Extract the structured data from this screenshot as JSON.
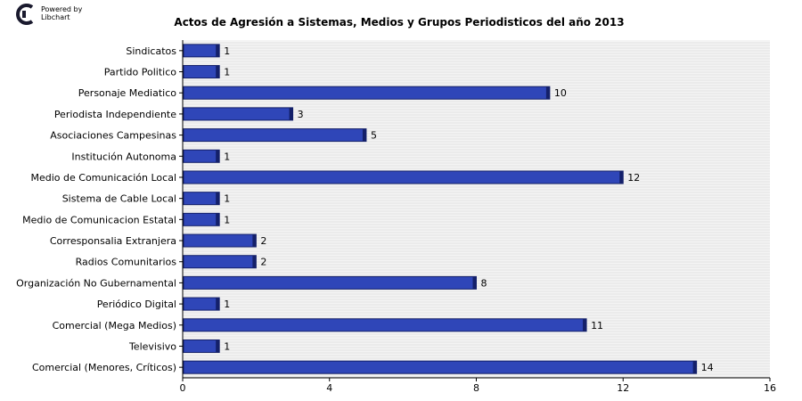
{
  "branding": {
    "line1": "Powered by",
    "line2": "Libchart"
  },
  "chart_data": {
    "type": "bar",
    "orientation": "horizontal",
    "title": "Actos de Agresión a Sistemas, Medios y Grupos Periodisticos del año 2013",
    "xlabel": "",
    "ylabel": "",
    "xlim": [
      0,
      16
    ],
    "xticks": [
      0,
      4,
      8,
      12,
      16
    ],
    "grid": true,
    "bar_color": "#2f46b8",
    "bar_edge_color": "#14206a",
    "categories": [
      "Sindicatos",
      "Partido Politico",
      "Personaje Mediatico",
      "Periodista Independiente",
      "Asociaciones Campesinas",
      "Institución Autonoma",
      "Medio de Comunicación Local",
      "Sistema de Cable Local",
      "Medio de Comunicacion Estatal",
      "Corresponsalia Extranjera",
      "Radios Comunitarios",
      "Organización No Gubernamental",
      "Periódico Digital",
      "Comercial (Mega Medios)",
      "Televisivo",
      "Comercial (Menores, Críticos)"
    ],
    "values": [
      1,
      1,
      10,
      3,
      5,
      1,
      12,
      1,
      1,
      2,
      2,
      8,
      1,
      11,
      1,
      14
    ]
  }
}
